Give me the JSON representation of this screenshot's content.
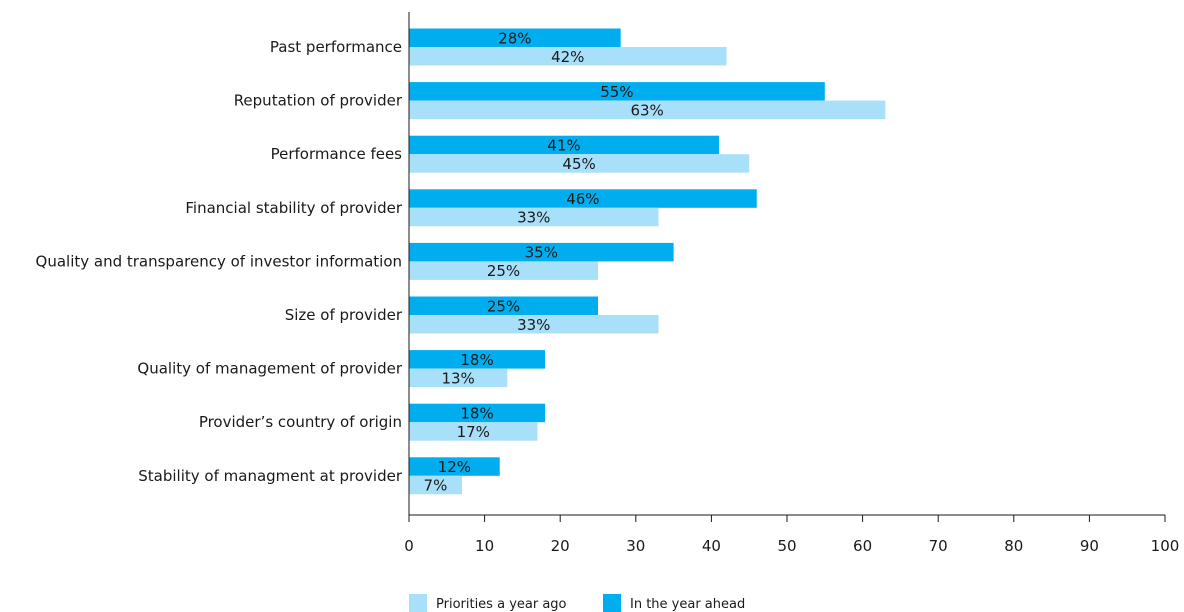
{
  "chart_data": {
    "type": "bar",
    "orientation": "horizontal",
    "categories": [
      "Past performance",
      "Reputation of provider",
      "Performance fees",
      "Financial stability of provider",
      "Quality and transparency of investor information",
      "Size of provider",
      "Quality of management of provider",
      "Provider’s country of origin",
      "Stability of managment at provider"
    ],
    "series": [
      {
        "name": "In the year ahead",
        "color": "#00aeef",
        "values": [
          28,
          55,
          41,
          46,
          35,
          25,
          18,
          18,
          12
        ],
        "labels": [
          "28%",
          "55%",
          "41%",
          "46%",
          "35%",
          "25%",
          "18%",
          "18%",
          "12%"
        ]
      },
      {
        "name": "Priorities a year ago",
        "color": "#a8e0fa",
        "values": [
          42,
          63,
          45,
          33,
          25,
          33,
          13,
          17,
          7
        ],
        "labels": [
          "42%",
          "63%",
          "45%",
          "33%",
          "25%",
          "33%",
          "13%",
          "17%",
          "7%"
        ]
      }
    ],
    "xlim": [
      0,
      100
    ],
    "xticks": [
      "0",
      "10",
      "20",
      "30",
      "40",
      "50",
      "60",
      "70",
      "80",
      "90",
      "100"
    ],
    "grid": false,
    "legend_position": "bottom-center",
    "legend_order": [
      "Priorities a year ago",
      "In the year ahead"
    ]
  }
}
